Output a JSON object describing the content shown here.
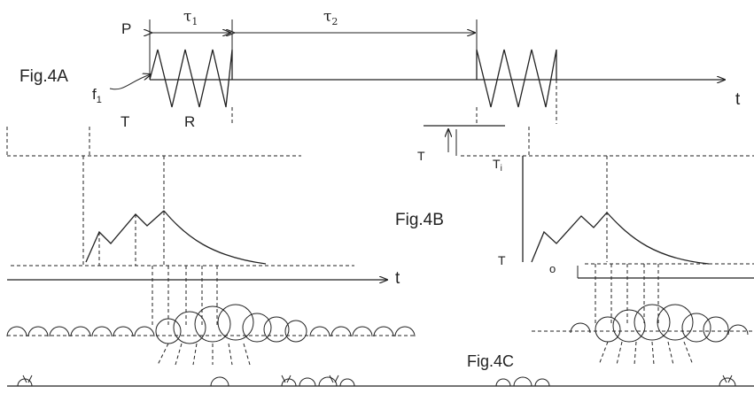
{
  "fig4a": {
    "label": "Fig.4A",
    "p_label": "P",
    "tau1": "τ",
    "tau1_sub": "1",
    "tau2": "τ",
    "tau2_sub": "2",
    "f_label": "f",
    "f_sub": "1",
    "t_label": "t",
    "t_fragment": "T",
    "r_fragment": "R"
  },
  "fig4b": {
    "label": "Fig.4B",
    "t_label": "t",
    "t_left": "T",
    "t_right": "T",
    "t_low": "T",
    "sub_i": "i",
    "sub_o": "o"
  },
  "fig4c": {
    "label": "Fig.4C"
  }
}
